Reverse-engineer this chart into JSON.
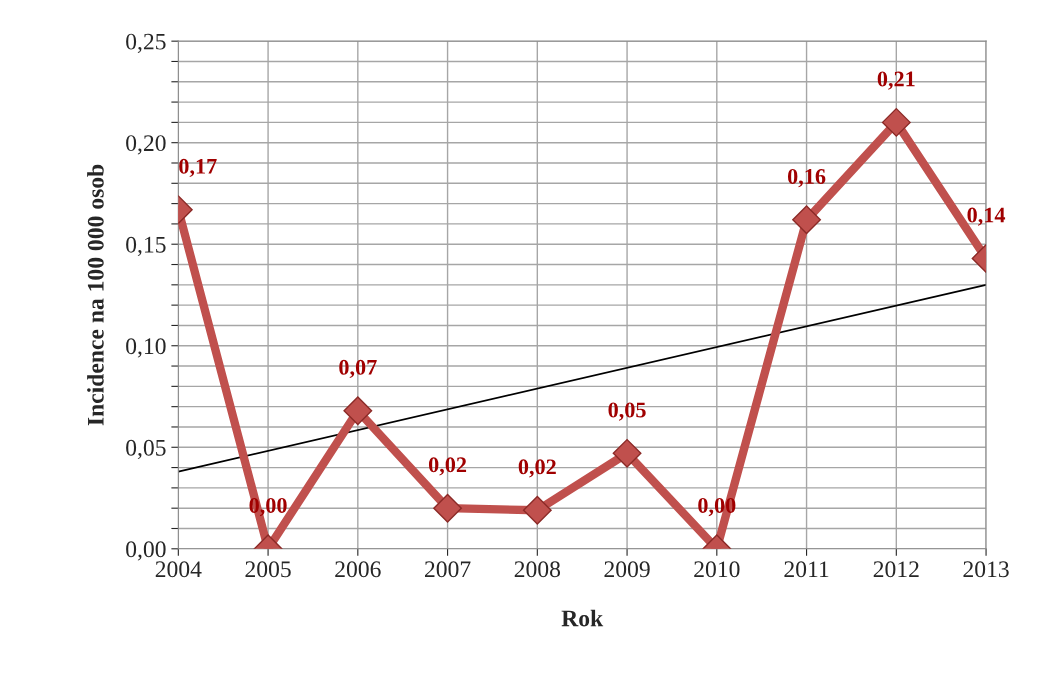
{
  "chart_data": {
    "type": "line",
    "xlabel": "Rok",
    "ylabel": "Incidence na 100 000 osob",
    "x": [
      2004,
      2005,
      2006,
      2007,
      2008,
      2009,
      2010,
      2011,
      2012,
      2013
    ],
    "xlim": [
      2004,
      2013
    ],
    "xticks": [
      2004,
      2005,
      2006,
      2007,
      2008,
      2009,
      2010,
      2011,
      2012,
      2013
    ],
    "ylim": [
      0,
      0.25
    ],
    "yticks": [
      {
        "value": 0,
        "label": "0,00"
      },
      {
        "value": 0.01,
        "label": null
      },
      {
        "value": 0.02,
        "label": null
      },
      {
        "value": 0.03,
        "label": null
      },
      {
        "value": 0.04,
        "label": null
      },
      {
        "value": 0.05,
        "label": "0,05"
      },
      {
        "value": 0.06,
        "label": null
      },
      {
        "value": 0.07,
        "label": null
      },
      {
        "value": 0.08,
        "label": null
      },
      {
        "value": 0.09,
        "label": null
      },
      {
        "value": 0.1,
        "label": "0,10"
      },
      {
        "value": 0.11,
        "label": null
      },
      {
        "value": 0.12,
        "label": null
      },
      {
        "value": 0.13,
        "label": null
      },
      {
        "value": 0.14,
        "label": null
      },
      {
        "value": 0.15,
        "label": "0,15"
      },
      {
        "value": 0.16,
        "label": null
      },
      {
        "value": 0.17,
        "label": null
      },
      {
        "value": 0.18,
        "label": null
      },
      {
        "value": 0.19,
        "label": null
      },
      {
        "value": 0.2,
        "label": "0,20"
      },
      {
        "value": 0.21,
        "label": null
      },
      {
        "value": 0.22,
        "label": null
      },
      {
        "value": 0.23,
        "label": null
      },
      {
        "value": 0.24,
        "label": null
      },
      {
        "value": 0.25,
        "label": "0,25"
      }
    ],
    "grid": true,
    "legend": false,
    "series": [
      {
        "color": "#c0504d",
        "marker": "diamond",
        "line_style": "solid",
        "values": [
          0.167,
          0.0,
          0.068,
          0.02,
          0.019,
          0.047,
          0.0,
          0.162,
          0.21,
          0.143
        ],
        "value_labels": [
          "0,17",
          "0,00",
          "0,07",
          "0,02",
          "0,02",
          "0,05",
          "0,00",
          "0,16",
          "0,21",
          "0,14"
        ]
      },
      {
        "type": "line",
        "color": "#000000",
        "marker": "none",
        "line_style": "solid",
        "x": [
          2004,
          2013
        ],
        "values": [
          0.038,
          0.13
        ]
      }
    ]
  }
}
